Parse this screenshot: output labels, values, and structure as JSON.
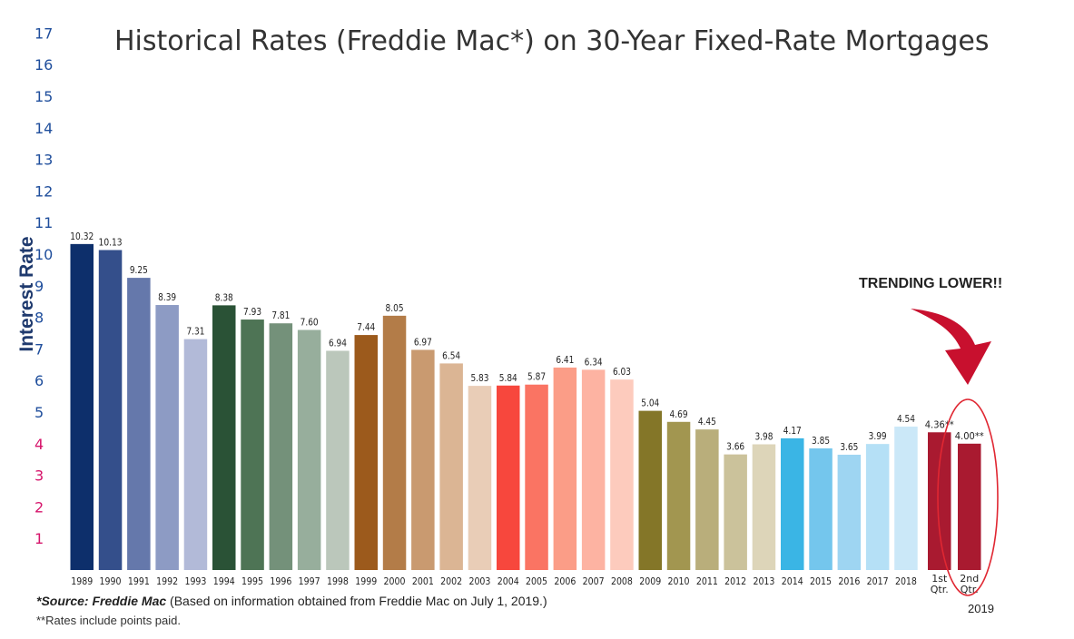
{
  "title": "Historical Rates (Freddie Mac*) on 30-Year Fixed-Rate Mortgages",
  "annotation": "TRENDING LOWER!!",
  "source": {
    "label": "*Source: Freddie Mac",
    "text": " (Based on information obtained from Freddie Mac on July 1, 2019.)"
  },
  "note": "**Rates include points paid.",
  "group_label_2019": "2019",
  "chart_data": {
    "type": "bar",
    "title": "Historical Rates (Freddie Mac*) on 30-Year Fixed-Rate Mortgages",
    "ylabel": "Interest Rate",
    "xlabel": "",
    "ylim": [
      0,
      17
    ],
    "y_ticks": [
      "1",
      "2",
      "3",
      "4",
      "5",
      "6",
      "7",
      "8",
      "9",
      "10",
      "11",
      "12",
      "13",
      "14",
      "15",
      "16",
      "17"
    ],
    "y_tick_colors": {
      "default": "#1f4e9c",
      "highlight": "#d6156b",
      "highlight_ticks": [
        "1",
        "2",
        "3",
        "4"
      ]
    },
    "grid": false,
    "categories": [
      "1989",
      "1990",
      "1991",
      "1992",
      "1993",
      "1994",
      "1995",
      "1996",
      "1997",
      "1998",
      "1999",
      "2000",
      "2001",
      "2002",
      "2003",
      "2004",
      "2005",
      "2006",
      "2007",
      "2008",
      "2009",
      "2010",
      "2011",
      "2012",
      "2013",
      "2014",
      "2015",
      "2016",
      "2017",
      "2018",
      "1st Qtr.",
      "2nd Qtr."
    ],
    "values": [
      10.32,
      10.13,
      9.25,
      8.39,
      7.31,
      8.38,
      7.93,
      7.81,
      7.6,
      6.94,
      7.44,
      8.05,
      6.97,
      6.54,
      5.83,
      5.84,
      5.87,
      6.41,
      6.34,
      6.03,
      5.04,
      4.69,
      4.45,
      3.66,
      3.98,
      4.17,
      3.85,
      3.65,
      3.99,
      4.54,
      4.36,
      4.0
    ],
    "value_labels": [
      "10.32",
      "10.13",
      "9.25",
      "8.39",
      "7.31",
      "8.38",
      "7.93",
      "7.81",
      "7.60",
      "6.94",
      "7.44",
      "8.05",
      "6.97",
      "6.54",
      "5.83",
      "5.84",
      "5.87",
      "6.41",
      "6.34",
      "6.03",
      "5.04",
      "4.69",
      "4.45",
      "3.66",
      "3.98",
      "4.17",
      "3.85",
      "3.65",
      "3.99",
      "4.54",
      "4.36**",
      "4.00**"
    ],
    "colors": [
      "#0d2f6b",
      "#344f8b",
      "#6578ab",
      "#8d9bc4",
      "#b2bad8",
      "#2a5236",
      "#4e7455",
      "#74917a",
      "#97ae9c",
      "#bbc7bb",
      "#9c5a1c",
      "#b37c48",
      "#c99a70",
      "#dbb594",
      "#e9cdb7",
      "#f7473d",
      "#fa7463",
      "#fb9d87",
      "#fdb3a2",
      "#fdcbbd",
      "#847628",
      "#a29650",
      "#b9ae7b",
      "#cbc29b",
      "#ddd5b9",
      "#3ab5e5",
      "#74c6ed",
      "#9ed5f2",
      "#b5e0f6",
      "#cbe8f8",
      "#a91a30",
      "#a91a30"
    ],
    "highlight_colors": {
      "circle": "#e02732",
      "arrow": "#c8102e"
    }
  }
}
